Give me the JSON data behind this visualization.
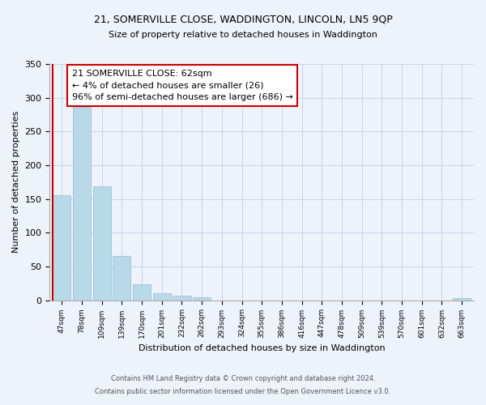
{
  "title1": "21, SOMERVILLE CLOSE, WADDINGTON, LINCOLN, LN5 9QP",
  "title2": "Size of property relative to detached houses in Waddington",
  "xlabel": "Distribution of detached houses by size in Waddington",
  "ylabel": "Number of detached properties",
  "bin_labels": [
    "47sqm",
    "78sqm",
    "109sqm",
    "139sqm",
    "170sqm",
    "201sqm",
    "232sqm",
    "262sqm",
    "293sqm",
    "324sqm",
    "355sqm",
    "386sqm",
    "416sqm",
    "447sqm",
    "478sqm",
    "509sqm",
    "539sqm",
    "570sqm",
    "601sqm",
    "632sqm",
    "663sqm"
  ],
  "bar_heights": [
    155,
    286,
    169,
    66,
    24,
    10,
    7,
    4,
    0,
    0,
    0,
    0,
    0,
    0,
    0,
    0,
    0,
    0,
    0,
    0,
    3
  ],
  "bar_color": "#b8d9e8",
  "bar_edge_color": "#90bcd4",
  "property_line_color": "#cc0000",
  "annotation_title": "21 SOMERVILLE CLOSE: 62sqm",
  "annotation_line1": "← 4% of detached houses are smaller (26)",
  "annotation_line2": "96% of semi-detached houses are larger (686) →",
  "annotation_box_color": "#cc0000",
  "ylim": [
    0,
    350
  ],
  "yticks": [
    0,
    50,
    100,
    150,
    200,
    250,
    300,
    350
  ],
  "footer1": "Contains HM Land Registry data © Crown copyright and database right 2024.",
  "footer2": "Contains public sector information licensed under the Open Government Licence v3.0.",
  "bg_color": "#eef2fb",
  "grid_color": "#c5d5ea"
}
